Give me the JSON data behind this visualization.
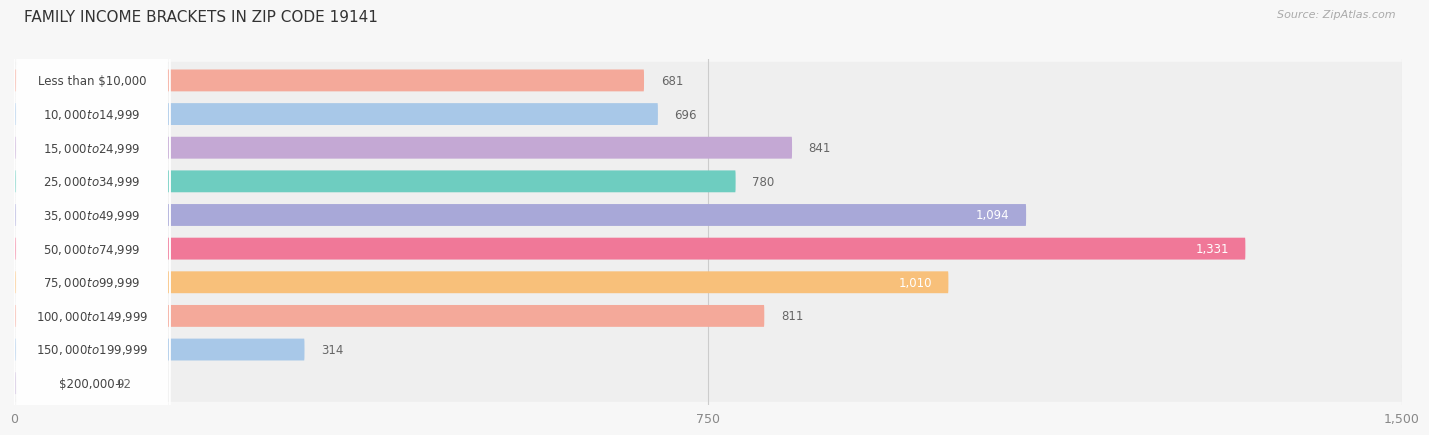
{
  "title": "FAMILY INCOME BRACKETS IN ZIP CODE 19141",
  "source": "Source: ZipAtlas.com",
  "categories": [
    "Less than $10,000",
    "$10,000 to $14,999",
    "$15,000 to $24,999",
    "$25,000 to $34,999",
    "$35,000 to $49,999",
    "$50,000 to $74,999",
    "$75,000 to $99,999",
    "$100,000 to $149,999",
    "$150,000 to $199,999",
    "$200,000+"
  ],
  "values": [
    681,
    696,
    841,
    780,
    1094,
    1331,
    1010,
    811,
    314,
    92
  ],
  "colors": [
    "#F4A99A",
    "#A8C8E8",
    "#C4A8D4",
    "#6ECDC0",
    "#A8A8D8",
    "#F07898",
    "#F8C07A",
    "#F4A99A",
    "#A8C8E8",
    "#C8B8D8"
  ],
  "xlim_data": [
    0,
    1500
  ],
  "xticks": [
    0,
    750,
    1500
  ],
  "xtick_labels": [
    "0",
    "750",
    "1,500"
  ],
  "background_color": "#f7f7f7",
  "row_bg_light": "#f0f0f0",
  "row_bg_dark": "#e8e8e8",
  "title_fontsize": 11,
  "source_fontsize": 8,
  "label_fontsize": 8.5,
  "value_fontsize": 8.5,
  "value_threshold": 900
}
